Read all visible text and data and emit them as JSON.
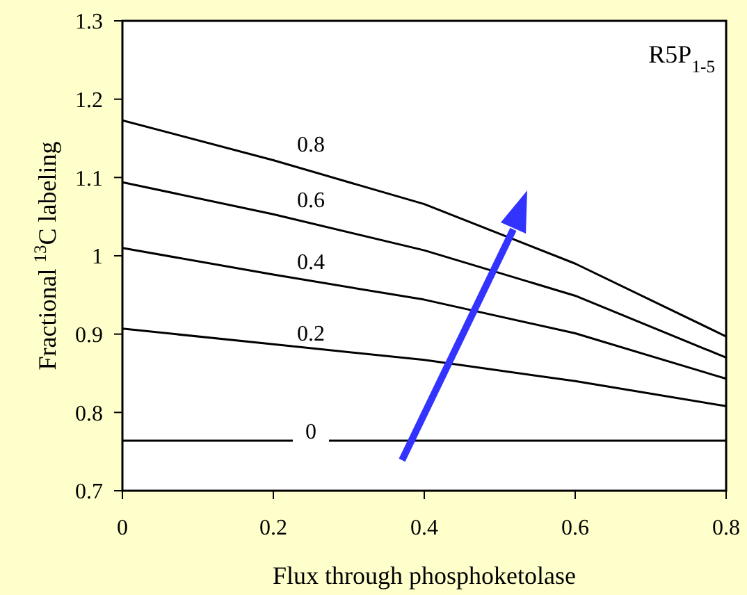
{
  "chart_data": {
    "type": "line",
    "xlabel": "Flux through phosphoketolase",
    "ylabel": "Fractional $^{13}$C labeling",
    "annotations": [
      "R5P$_{1-5}$"
    ],
    "x": [
      0,
      0.2,
      0.4,
      0.6,
      0.8
    ],
    "series": [
      {
        "name": "0",
        "color": "#000000",
        "values": [
          0.764,
          0.764,
          0.764,
          0.764,
          0.764
        ]
      },
      {
        "name": "0.2",
        "color": "#000000",
        "values": [
          0.907,
          0.887,
          0.867,
          0.84,
          0.808
        ]
      },
      {
        "name": "0.4",
        "color": "#000000",
        "values": [
          1.01,
          0.976,
          0.944,
          0.901,
          0.843
        ]
      },
      {
        "name": "0.6",
        "color": "#000000",
        "values": [
          1.094,
          1.053,
          1.007,
          0.949,
          0.87
        ]
      },
      {
        "name": "0.8",
        "color": "#000000",
        "values": [
          1.173,
          1.122,
          1.066,
          0.99,
          0.897
        ]
      }
    ],
    "xlim": [
      0,
      0.8
    ],
    "xticks": [
      0,
      0.2,
      0.4,
      0.6,
      0.8
    ],
    "ylim": [
      0.7,
      1.3
    ],
    "yticks": [
      0.7,
      0.8,
      0.9,
      1,
      1.1,
      1.2,
      1.3
    ],
    "grid": false,
    "legend": false,
    "marker": "none",
    "line_style": "solid"
  }
}
